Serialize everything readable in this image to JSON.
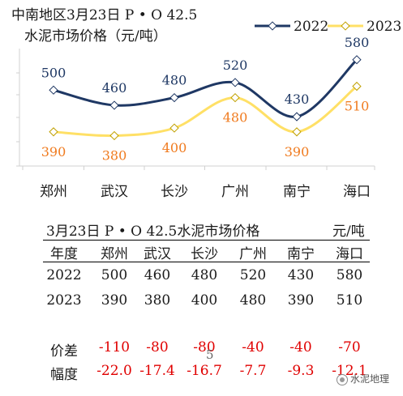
{
  "chart_data": {
    "type": "line",
    "title_line1": "中南地区3月23日  P • O 42.5",
    "title_line2": "水泥市场价格（元/吨）",
    "categories": [
      "郑州",
      "武汉",
      "长沙",
      "广州",
      "南宁",
      "海口"
    ],
    "ylim": [
      300,
      620
    ],
    "legend_placement": "top-right",
    "series": [
      {
        "name": "2022",
        "values": [
          500,
          460,
          480,
          520,
          430,
          580
        ],
        "color": "#1f3864",
        "label_color": "#1f3864"
      },
      {
        "name": "2023",
        "values": [
          390,
          380,
          400,
          480,
          390,
          510
        ],
        "color": "#ffe066",
        "label_color": "#f07b1f"
      }
    ]
  },
  "table": {
    "title": "3月23日  P • O 42.5水泥市场价格",
    "unit": "元/吨",
    "header_label": "年度",
    "columns": [
      "郑州",
      "武汉",
      "长沙",
      "广州",
      "南宁",
      "海口"
    ],
    "rows": [
      {
        "label": "2022",
        "values": [
          "500",
          "460",
          "480",
          "520",
          "430",
          "580"
        ],
        "red": false
      },
      {
        "label": "2023",
        "values": [
          "390",
          "380",
          "400",
          "480",
          "390",
          "510"
        ],
        "red": false
      },
      {
        "label": "价差",
        "values": [
          "-110",
          "-80",
          "-80",
          "-40",
          "-40",
          "-70"
        ],
        "red": true
      },
      {
        "label": "幅度",
        "values": [
          "-22.0",
          "-17.4",
          "-16.7",
          "-7.7",
          "-9.3",
          "-12.1"
        ],
        "red": true
      }
    ]
  },
  "page_number": "5",
  "watermark": "水泥地理"
}
